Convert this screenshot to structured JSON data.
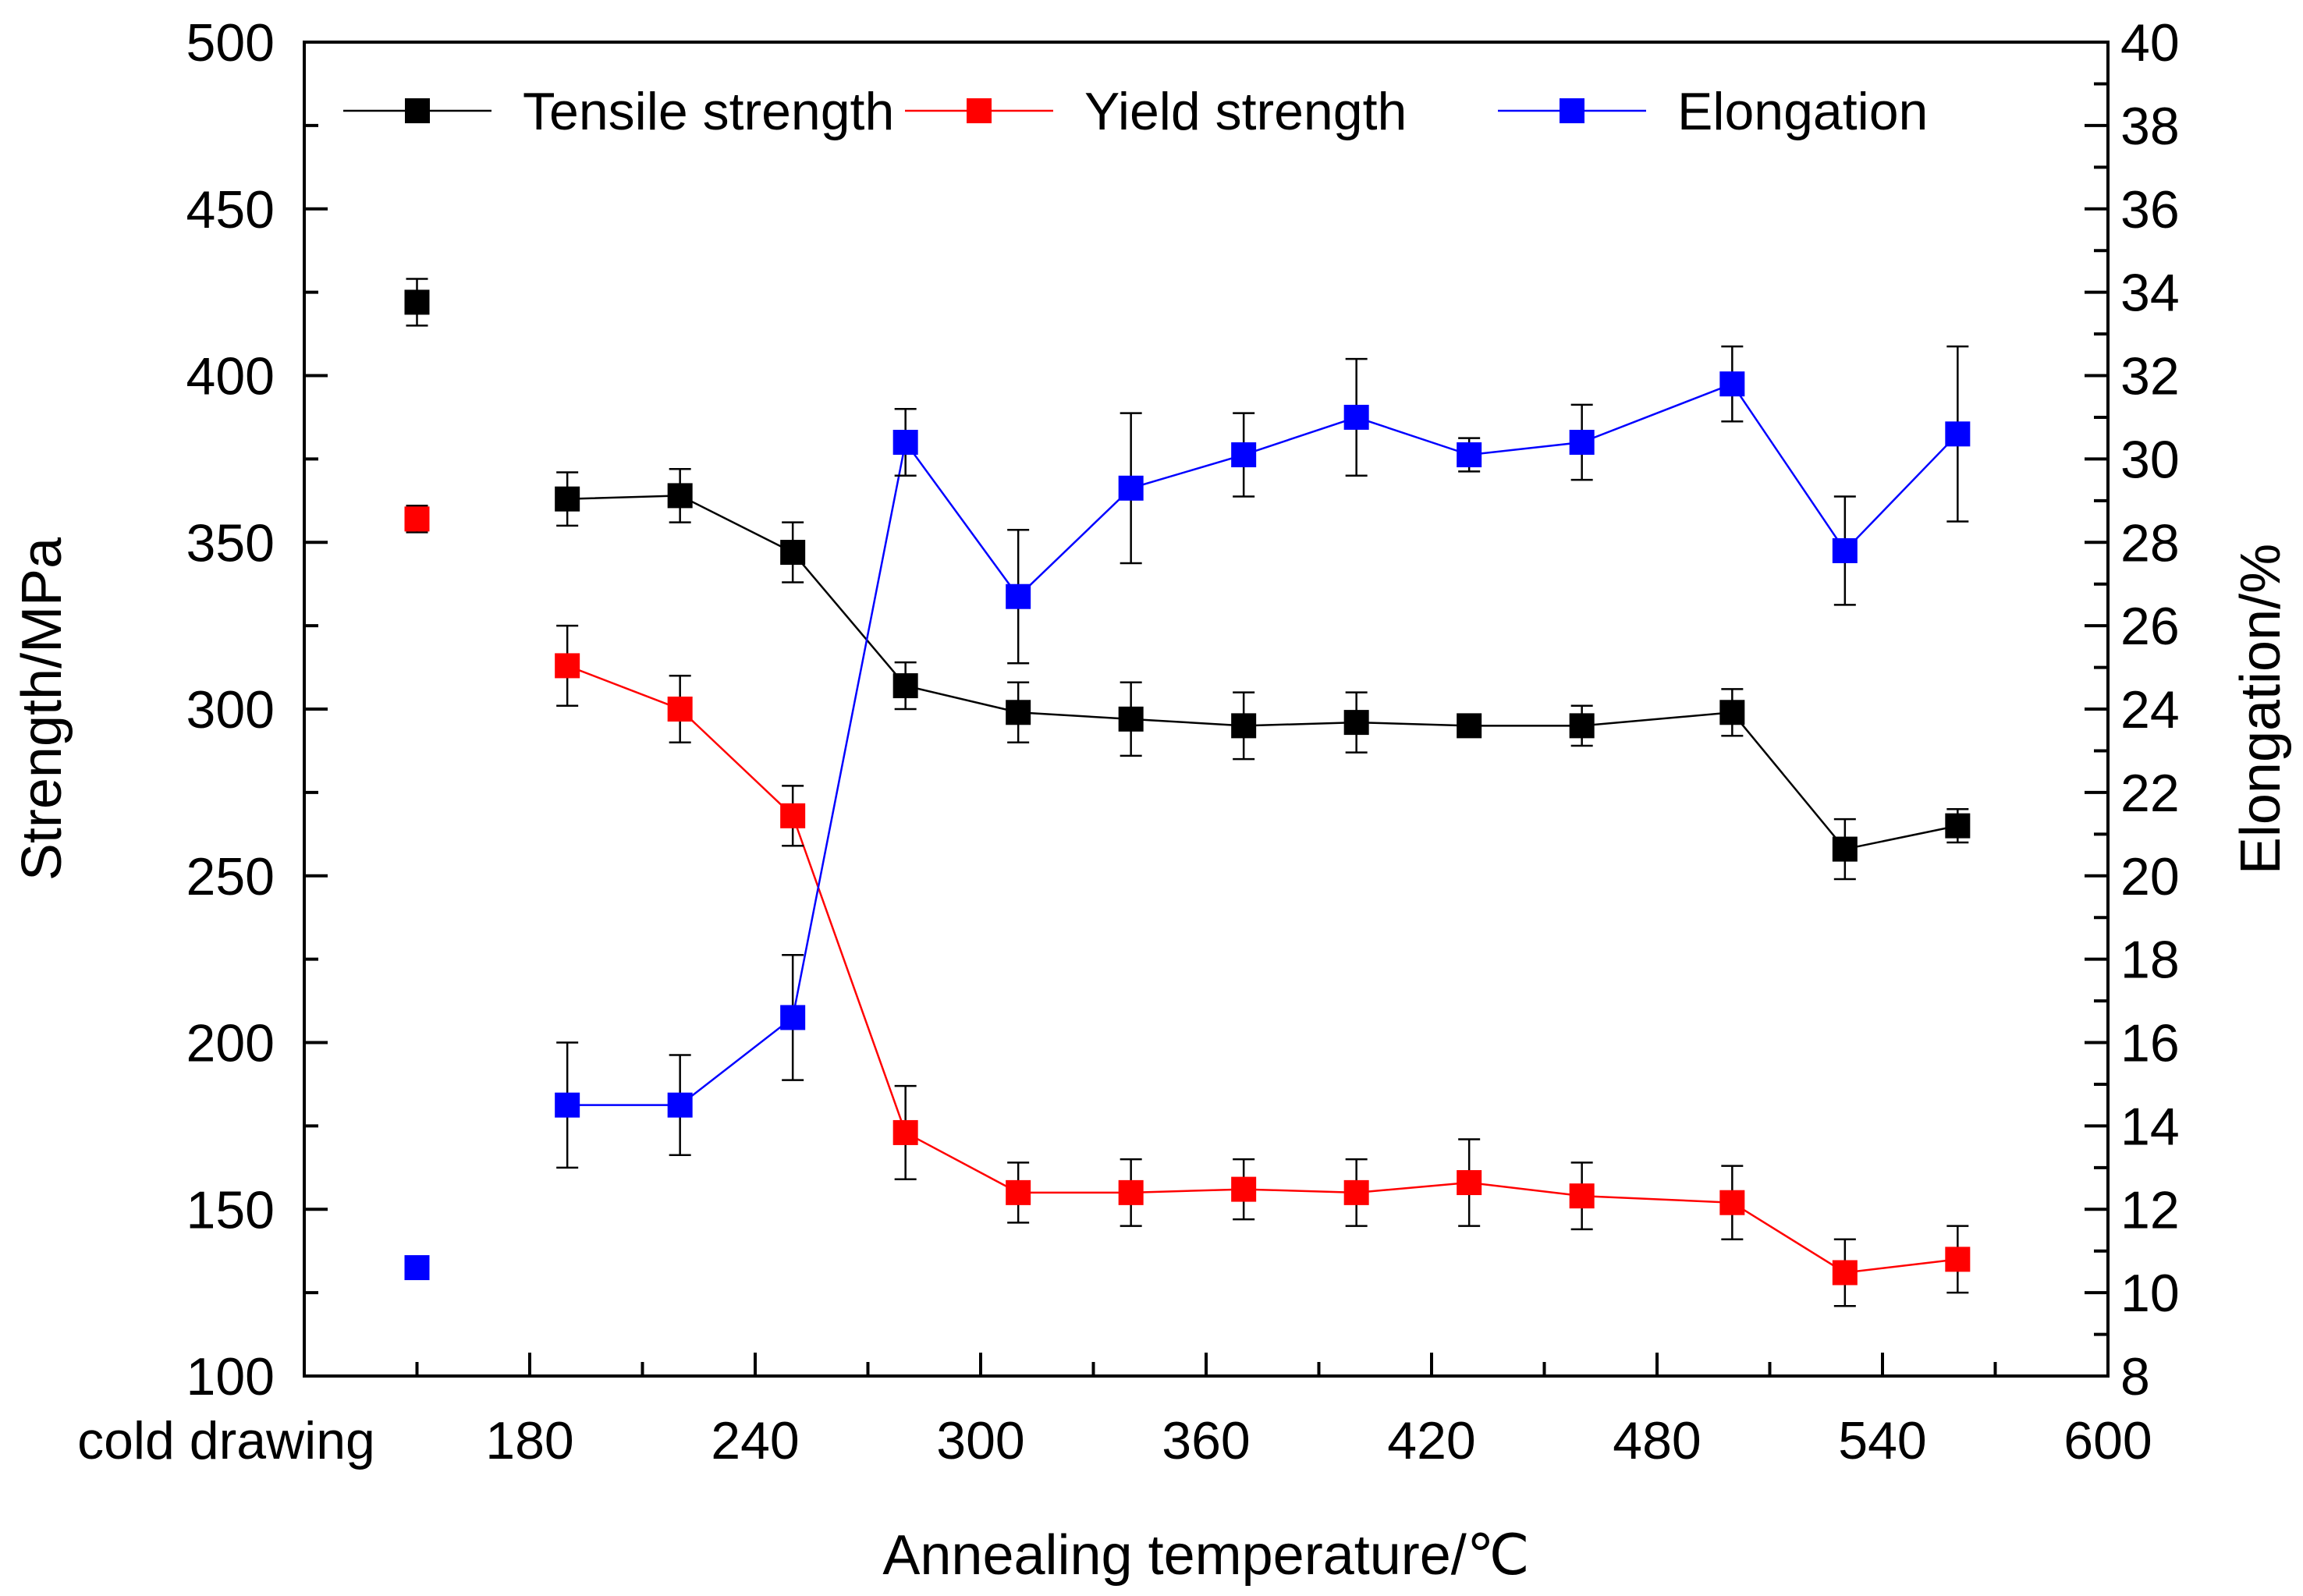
{
  "chart_data": {
    "type": "line",
    "title": "",
    "xlabel": "Annealing temperature/℃",
    "ylabel": "Strength/MPa",
    "y2label": "Elongation/%",
    "xlim": [
      120,
      600
    ],
    "ylim": [
      100,
      500
    ],
    "y2lim": [
      8,
      40
    ],
    "first_category_label": "cold drawing",
    "x_ticks": [
      180,
      240,
      300,
      360,
      420,
      480,
      540,
      600
    ],
    "x_tick_labels": [
      "180",
      "240",
      "300",
      "360",
      "420",
      "480",
      "540",
      "600"
    ],
    "y_ticks": [
      100,
      150,
      200,
      250,
      300,
      350,
      400,
      450,
      500
    ],
    "y_tick_labels": [
      "100",
      "150",
      "200",
      "250",
      "300",
      "350",
      "400",
      "450",
      "500"
    ],
    "y2_ticks": [
      8,
      10,
      12,
      14,
      16,
      18,
      20,
      22,
      24,
      26,
      28,
      30,
      32,
      34,
      36,
      38,
      40
    ],
    "y2_tick_labels": [
      "8",
      "10",
      "12",
      "14",
      "16",
      "18",
      "20",
      "22",
      "24",
      "26",
      "28",
      "30",
      "32",
      "34",
      "36",
      "38",
      "40"
    ],
    "legend_position": "top",
    "grid": false,
    "series": [
      {
        "name": "Tensile strength",
        "axis": "left",
        "color": "#000000",
        "cold_drawing": {
          "x": 150,
          "value": 422,
          "err": 7
        },
        "x": [
          190,
          220,
          250,
          280,
          310,
          340,
          370,
          400,
          430,
          460,
          500,
          530,
          560
        ],
        "values": [
          363,
          364,
          347,
          307,
          299,
          297,
          295,
          296,
          295,
          295,
          299,
          258,
          265
        ],
        "errors": [
          8,
          8,
          9,
          7,
          9,
          11,
          10,
          9,
          2,
          6,
          7,
          9,
          5
        ]
      },
      {
        "name": "Yield strength",
        "axis": "left",
        "color": "#ff0000",
        "cold_drawing": {
          "x": 150,
          "value": 357,
          "err": 4
        },
        "x": [
          190,
          220,
          250,
          280,
          310,
          340,
          370,
          400,
          430,
          460,
          500,
          530,
          560
        ],
        "values": [
          313,
          300,
          268,
          173,
          155,
          155,
          156,
          155,
          158,
          154,
          152,
          131,
          135
        ],
        "errors": [
          12,
          10,
          9,
          14,
          9,
          10,
          9,
          10,
          13,
          10,
          11,
          10,
          10
        ]
      },
      {
        "name": "Elongation",
        "axis": "right",
        "color": "#0000ff",
        "cold_drawing": {
          "x": 150,
          "value": 10.6,
          "err": 0
        },
        "x": [
          190,
          220,
          250,
          280,
          310,
          340,
          370,
          400,
          430,
          460,
          500,
          530,
          560
        ],
        "values": [
          14.5,
          14.5,
          16.6,
          30.4,
          26.7,
          29.3,
          30.1,
          31.0,
          30.1,
          30.4,
          31.8,
          27.8,
          30.6
        ],
        "errors": [
          1.5,
          1.2,
          1.5,
          0.8,
          1.6,
          1.8,
          1.0,
          1.4,
          0.4,
          0.9,
          0.9,
          1.3,
          2.1
        ]
      }
    ]
  }
}
